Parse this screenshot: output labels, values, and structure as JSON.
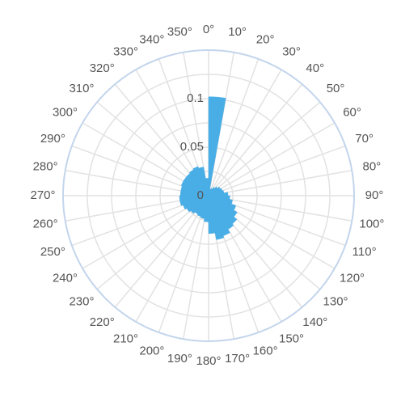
{
  "chart_data": {
    "type": "polar-bar",
    "title": "",
    "angular_axis": {
      "unit": "°",
      "direction": "clockwise",
      "zero_position": "top",
      "tick_labels": [
        "0°",
        "10°",
        "20°",
        "30°",
        "40°",
        "50°",
        "60°",
        "70°",
        "80°",
        "90°",
        "100°",
        "110°",
        "120°",
        "130°",
        "140°",
        "150°",
        "160°",
        "170°",
        "180°",
        "190°",
        "200°",
        "210°",
        "220°",
        "230°",
        "240°",
        "250°",
        "260°",
        "270°",
        "280°",
        "290°",
        "300°",
        "310°",
        "320°",
        "330°",
        "340°",
        "350°"
      ]
    },
    "radial_axis": {
      "range": [
        0,
        0.15
      ],
      "tick_labels": [
        "0",
        "0.05",
        "0.1"
      ],
      "tick_values": [
        0,
        0.05,
        0.1
      ]
    },
    "bin_width_deg": 10,
    "series": [
      {
        "color": "#4aaee6",
        "bins_start_deg": [
          0,
          10,
          20,
          30,
          40,
          50,
          60,
          70,
          80,
          90,
          100,
          110,
          120,
          130,
          140,
          150,
          160,
          170,
          180,
          190,
          200,
          210,
          220,
          230,
          240,
          250,
          260,
          270,
          280,
          290,
          300,
          310,
          320,
          330,
          340,
          350
        ],
        "values": [
          0.102,
          0.007,
          0.008,
          0.01,
          0.012,
          0.014,
          0.015,
          0.016,
          0.02,
          0.022,
          0.025,
          0.03,
          0.034,
          0.038,
          0.04,
          0.044,
          0.046,
          0.039,
          0.027,
          0.024,
          0.023,
          0.022,
          0.024,
          0.026,
          0.028,
          0.03,
          0.03,
          0.029,
          0.029,
          0.03,
          0.03,
          0.03,
          0.031,
          0.032,
          0.03,
          0.018
        ]
      }
    ],
    "grid": true
  }
}
